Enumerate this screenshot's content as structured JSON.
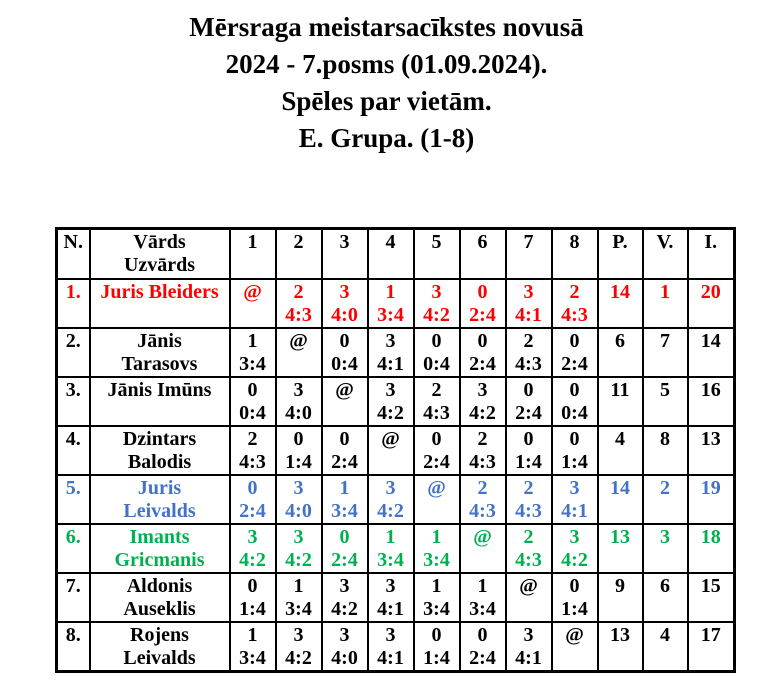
{
  "title": {
    "lines": [
      "Mērsraga meistarsacīkstes novusā",
      "2024 - 7.posms (01.09.2024).",
      "Spēles par vietām.",
      "E. Grupa. (1-8)"
    ]
  },
  "colors": {
    "background": "#FFFFFF",
    "border": "#000000",
    "text_default": "#000000",
    "row_highlight_red": "#FF0000",
    "row_highlight_blue": "#4472C4",
    "row_highlight_green": "#00B050"
  },
  "table": {
    "header": {
      "n": "N.",
      "name_line1": "Vārds",
      "name_line2": "Uzvārds",
      "rounds": [
        "1",
        "2",
        "3",
        "4",
        "5",
        "6",
        "7",
        "8"
      ],
      "points": "P.",
      "place": "V.",
      "i": "I."
    },
    "rows": [
      {
        "n": "1.",
        "name_lines": [
          "Juris Bleiders"
        ],
        "color": "#FF0000",
        "games": [
          [
            "@",
            ""
          ],
          [
            "2",
            "4:3"
          ],
          [
            "3",
            "4:0"
          ],
          [
            "1",
            "3:4"
          ],
          [
            "3",
            "4:2"
          ],
          [
            "0",
            "2:4"
          ],
          [
            "3",
            "4:1"
          ],
          [
            "2",
            "4:3"
          ]
        ],
        "p": "14",
        "v": "1",
        "i": "20"
      },
      {
        "n": "2.",
        "name_lines": [
          "Jānis",
          "Tarasovs"
        ],
        "color": "#000000",
        "games": [
          [
            "1",
            "3:4"
          ],
          [
            "@",
            ""
          ],
          [
            "0",
            "0:4"
          ],
          [
            "3",
            "4:1"
          ],
          [
            "0",
            "0:4"
          ],
          [
            "0",
            "2:4"
          ],
          [
            "2",
            "4:3"
          ],
          [
            "0",
            "2:4"
          ]
        ],
        "p": "6",
        "v": "7",
        "i": "14"
      },
      {
        "n": "3.",
        "name_lines": [
          "Jānis Imūns"
        ],
        "color": "#000000",
        "games": [
          [
            "0",
            "0:4"
          ],
          [
            "3",
            "4:0"
          ],
          [
            "@",
            ""
          ],
          [
            "3",
            "4:2"
          ],
          [
            "2",
            "4:3"
          ],
          [
            "3",
            "4:2"
          ],
          [
            "0",
            "2:4"
          ],
          [
            "0",
            "0:4"
          ]
        ],
        "p": "11",
        "v": "5",
        "i": "16"
      },
      {
        "n": "4.",
        "name_lines": [
          "Dzintars",
          "Balodis"
        ],
        "color": "#000000",
        "games": [
          [
            "2",
            "4:3"
          ],
          [
            "0",
            "1:4"
          ],
          [
            "0",
            "2:4"
          ],
          [
            "@",
            ""
          ],
          [
            "0",
            "2:4"
          ],
          [
            "2",
            "4:3"
          ],
          [
            "0",
            "1:4"
          ],
          [
            "0",
            "1:4"
          ]
        ],
        "p": "4",
        "v": "8",
        "i": "13"
      },
      {
        "n": "5.",
        "name_lines": [
          "Juris",
          "Leivalds"
        ],
        "color": "#4472C4",
        "games": [
          [
            "0",
            "2:4"
          ],
          [
            "3",
            "4:0"
          ],
          [
            "1",
            "3:4"
          ],
          [
            "3",
            "4:2"
          ],
          [
            "@",
            ""
          ],
          [
            "2",
            "4:3"
          ],
          [
            "2",
            "4:3"
          ],
          [
            "3",
            "4:1"
          ]
        ],
        "p": "14",
        "v": "2",
        "i": "19"
      },
      {
        "n": "6.",
        "name_lines": [
          "Imants",
          "Gricmanis"
        ],
        "color": "#00B050",
        "games": [
          [
            "3",
            "4:2"
          ],
          [
            "3",
            "4:2"
          ],
          [
            "0",
            "2:4"
          ],
          [
            "1",
            "3:4"
          ],
          [
            "1",
            "3:4"
          ],
          [
            "@",
            ""
          ],
          [
            "2",
            "4:3"
          ],
          [
            "3",
            "4:2"
          ]
        ],
        "p": "13",
        "v": "3",
        "i": "18"
      },
      {
        "n": "7.",
        "name_lines": [
          "Aldonis",
          "Auseklis"
        ],
        "color": "#000000",
        "games": [
          [
            "0",
            "1:4"
          ],
          [
            "1",
            "3:4"
          ],
          [
            "3",
            "4:2"
          ],
          [
            "3",
            "4:1"
          ],
          [
            "1",
            "3:4"
          ],
          [
            "1",
            "3:4"
          ],
          [
            "@",
            ""
          ],
          [
            "0",
            "1:4"
          ]
        ],
        "p": "9",
        "v": "6",
        "i": "15"
      },
      {
        "n": "8.",
        "name_lines": [
          "Rojens",
          "Leivalds"
        ],
        "color": "#000000",
        "games": [
          [
            "1",
            "3:4"
          ],
          [
            "3",
            "4:2"
          ],
          [
            "3",
            "4:0"
          ],
          [
            "3",
            "4:1"
          ],
          [
            "0",
            "1:4"
          ],
          [
            "0",
            "2:4"
          ],
          [
            "3",
            "4:1"
          ],
          [
            "@",
            ""
          ]
        ],
        "p": "13",
        "v": "4",
        "i": "17"
      }
    ]
  }
}
